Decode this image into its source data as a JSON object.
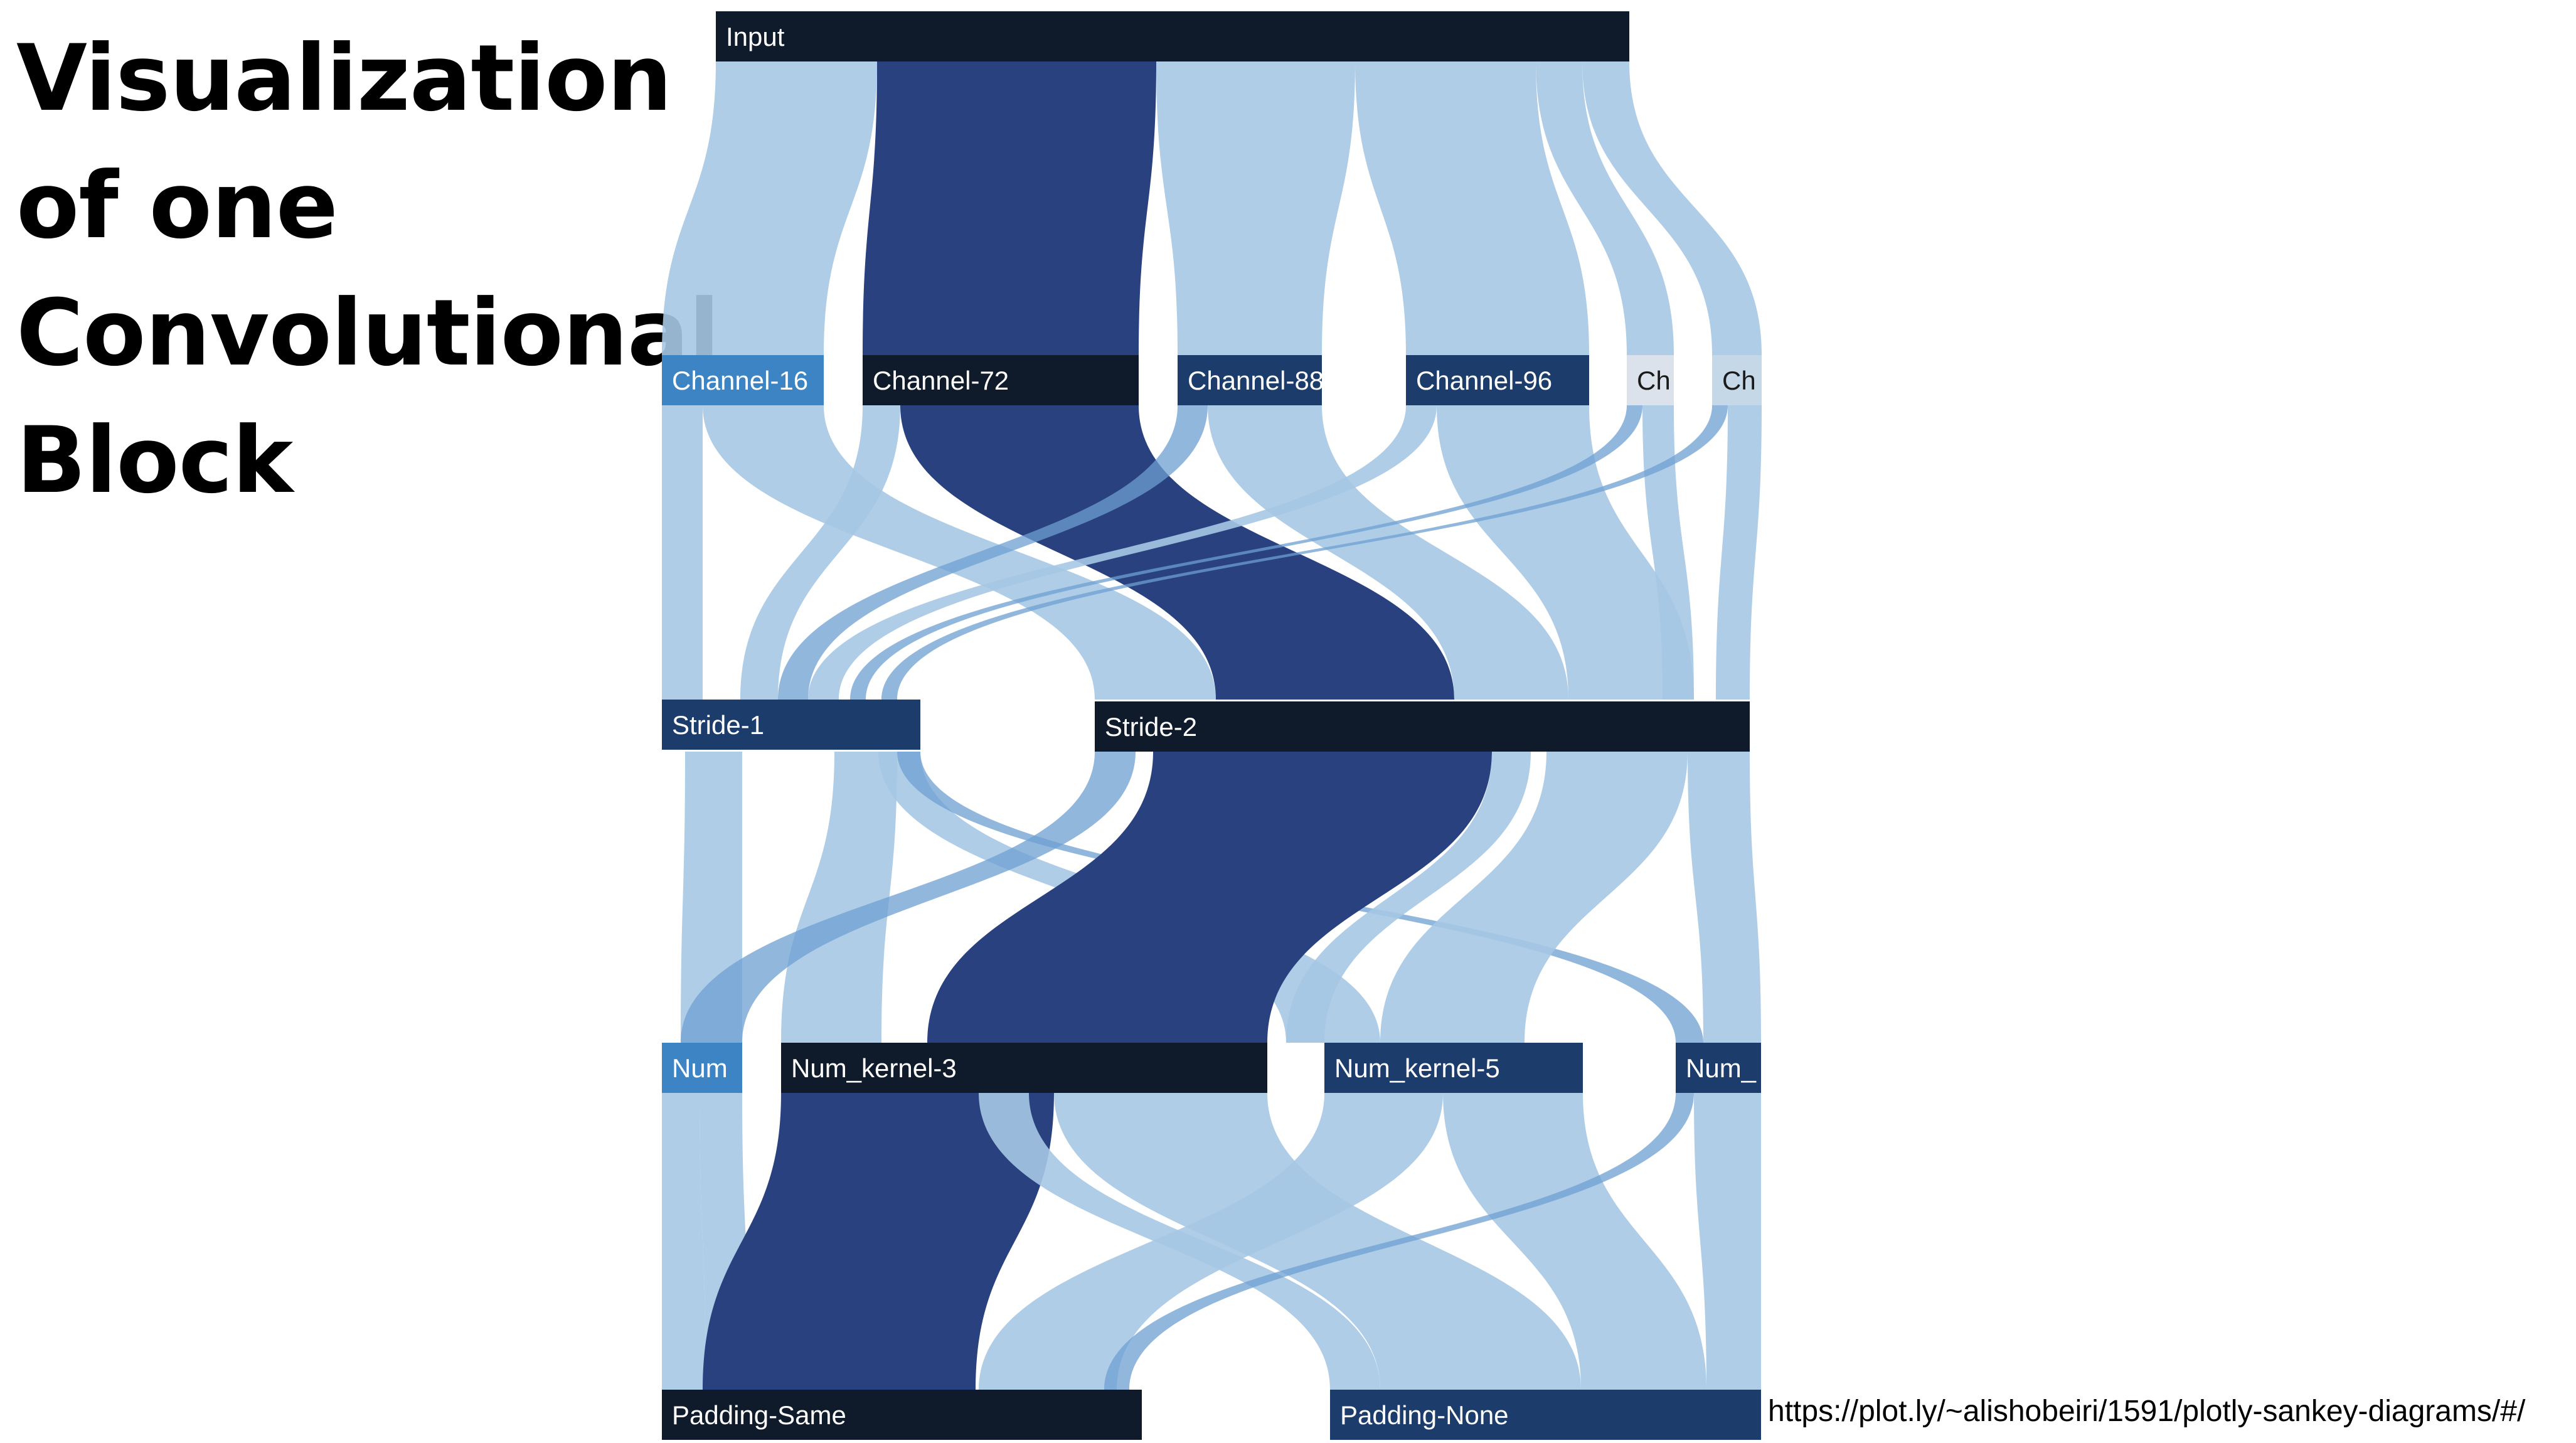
{
  "slide": {
    "title_lines": [
      "Visualization",
      "of one",
      "Convolutional",
      "Block"
    ],
    "source_url": "https://plot.ly/~alishobeiri/1591/plotly-sankey-diagrams/#/"
  },
  "sankey": {
    "nodes": [
      {
        "id": "input",
        "label": "Input",
        "color": "#0f1a2a"
      },
      {
        "id": "c16",
        "label": "Channel-16",
        "color": "#3c84c4"
      },
      {
        "id": "c72",
        "label": "Channel-72",
        "color": "#0f1a2a"
      },
      {
        "id": "c88",
        "label": "Channel-88",
        "color": "#1c3c6c"
      },
      {
        "id": "c96",
        "label": "Channel-96",
        "color": "#1c3c6c"
      },
      {
        "id": "ca",
        "label": "Ch",
        "color": "#dbe2ec"
      },
      {
        "id": "cb",
        "label": "Ch",
        "color": "#c4d8e8"
      },
      {
        "id": "s1",
        "label": "Stride-1",
        "color": "#1c3c6c"
      },
      {
        "id": "s2",
        "label": "Stride-2",
        "color": "#0f1a2a"
      },
      {
        "id": "k1",
        "label": "Num",
        "color": "#3c84c4"
      },
      {
        "id": "k3",
        "label": "Num_kernel-3",
        "color": "#0f1a2a"
      },
      {
        "id": "k5",
        "label": "Num_kernel-5",
        "color": "#1c3c6c"
      },
      {
        "id": "k7",
        "label": "Num_",
        "color": "#1c3c6c"
      },
      {
        "id": "ps",
        "label": "Padding-Same",
        "color": "#0f1a2a"
      },
      {
        "id": "pn",
        "label": "Padding-None",
        "color": "#1c3c6c"
      }
    ],
    "link_colors": {
      "light": "#a6c8e4",
      "dark": "#2a4180",
      "medium": "#6d9fd2"
    }
  }
}
